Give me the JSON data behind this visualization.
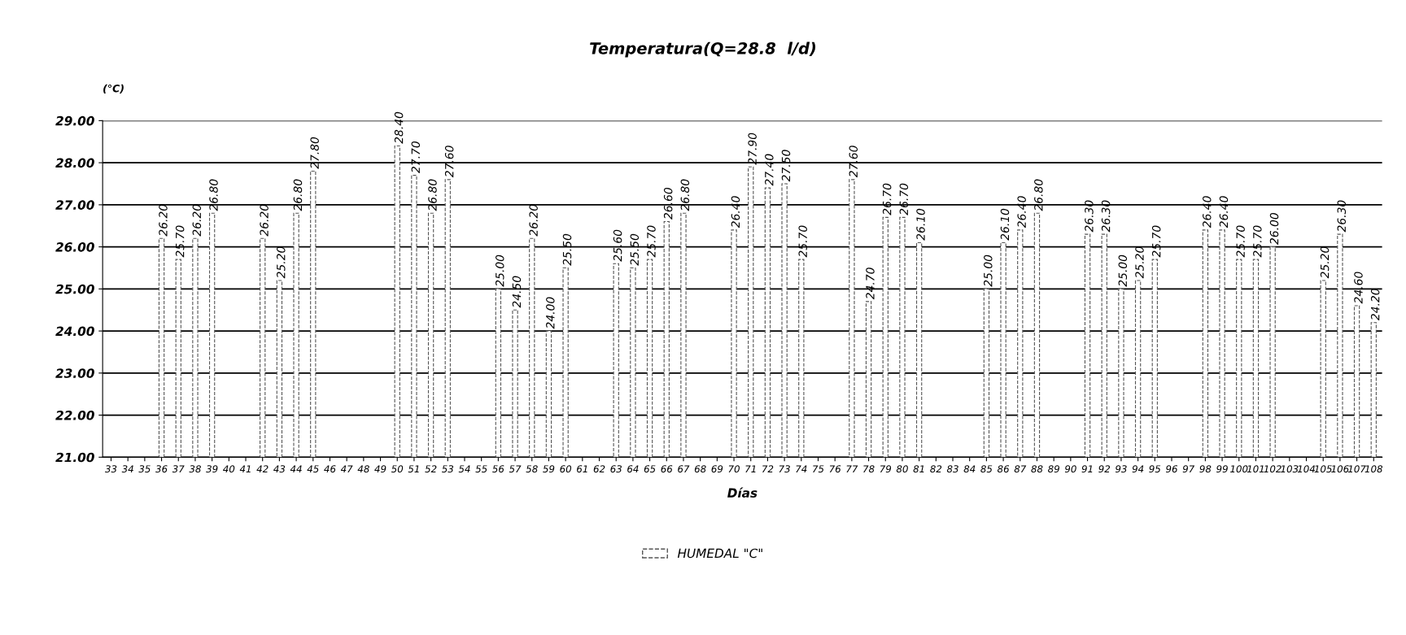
{
  "chart_data": {
    "type": "bar",
    "title": "Temperatura(Q=28.8  l/d)",
    "xlabel": "Días",
    "ylabel": "(°C)",
    "categories": [
      "33",
      "34",
      "35",
      "36",
      "37",
      "38",
      "39",
      "40",
      "41",
      "42",
      "43",
      "44",
      "45",
      "46",
      "47",
      "48",
      "49",
      "50",
      "51",
      "52",
      "53",
      "54",
      "55",
      "56",
      "57",
      "58",
      "59",
      "60",
      "61",
      "62",
      "63",
      "64",
      "65",
      "66",
      "67",
      "68",
      "69",
      "70",
      "71",
      "72",
      "73",
      "74",
      "75",
      "76",
      "77",
      "78",
      "79",
      "80",
      "81",
      "82",
      "83",
      "84",
      "85",
      "86",
      "87",
      "88",
      "89",
      "90",
      "91",
      "92",
      "93",
      "94",
      "95",
      "96",
      "97",
      "98",
      "99",
      "100",
      "101",
      "102",
      "103",
      "104",
      "105",
      "106",
      "107",
      "108"
    ],
    "series": [
      {
        "name": "HUMEDAL \"C\"",
        "color": "#ffffff",
        "values": [
          null,
          null,
          null,
          26.2,
          25.7,
          26.2,
          26.8,
          null,
          null,
          26.2,
          25.2,
          26.8,
          27.8,
          null,
          null,
          null,
          null,
          28.4,
          27.7,
          26.8,
          27.6,
          null,
          null,
          25.0,
          24.5,
          26.2,
          24.0,
          25.5,
          null,
          null,
          25.6,
          25.5,
          25.7,
          26.6,
          26.8,
          null,
          null,
          26.4,
          27.9,
          27.4,
          27.5,
          25.7,
          null,
          null,
          27.6,
          24.7,
          26.7,
          26.7,
          26.1,
          null,
          null,
          null,
          25.0,
          26.1,
          26.4,
          26.8,
          null,
          null,
          26.3,
          26.3,
          25.0,
          25.2,
          25.7,
          null,
          null,
          26.4,
          26.4,
          25.7,
          25.7,
          26.0,
          null,
          null,
          25.2,
          26.3,
          24.6,
          24.2
        ],
        "value_labels": [
          null,
          null,
          null,
          "26.20",
          "25.70",
          "26.20",
          "26.80",
          null,
          null,
          "26.20",
          "25.20",
          "26.80",
          "27.80",
          null,
          null,
          null,
          null,
          "28.40",
          "27.70",
          "26.80",
          "27.60",
          null,
          null,
          "25.00",
          "24.50",
          "26.20",
          "24.00",
          "25.50",
          null,
          null,
          "25.60",
          "25.50",
          "25.70",
          "26.60",
          "26.80",
          null,
          null,
          "26.40",
          "27.90",
          "27.40",
          "27.50",
          "25.70",
          null,
          null,
          "27.60",
          "24.70",
          "26.70",
          "26.70",
          "26.10",
          null,
          null,
          null,
          "25.00",
          "26.10",
          "26.40",
          "26.80",
          null,
          null,
          "26.30",
          "26.30",
          "25.00",
          "25.20",
          "25.70",
          null,
          null,
          "26.40",
          "26.40",
          "25.70",
          "25.70",
          "26.00",
          null,
          null,
          "25.20",
          "26.30",
          "24.60",
          "24.20"
        ]
      }
    ],
    "ylim": [
      21,
      29
    ],
    "yticks": [
      {
        "value": 21,
        "label": "21.00"
      },
      {
        "value": 22,
        "label": "22.00"
      },
      {
        "value": 23,
        "label": "23.00"
      },
      {
        "value": 24,
        "label": "24.00"
      },
      {
        "value": 25,
        "label": "25.00"
      },
      {
        "value": 26,
        "label": "26.00"
      },
      {
        "value": 27,
        "label": "27.00"
      },
      {
        "value": 28,
        "label": "28.00"
      },
      {
        "value": 29,
        "label": "29.00"
      }
    ],
    "grid": "y",
    "legend": "bottom"
  }
}
